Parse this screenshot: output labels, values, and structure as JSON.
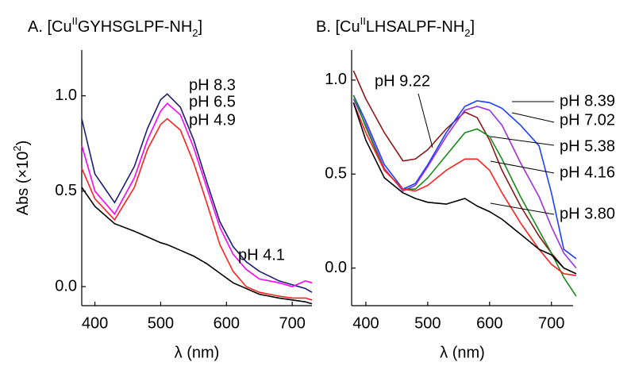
{
  "chart_data": [
    {
      "type": "line",
      "title": [
        "A. [Cu",
        "II",
        "GYHSGLPF-NH",
        "2",
        "]"
      ],
      "y_label": [
        "Abs (×10",
        "2",
        ")"
      ],
      "x_label": "λ (nm)",
      "xlim": [
        380,
        730
      ],
      "xticks": [
        400,
        500,
        600,
        700
      ],
      "ylim": [
        -0.1,
        1.24
      ],
      "yticks": [
        {
          "value": 0,
          "label": "0.0"
        },
        0.5,
        {
          "value": 1,
          "label": "1.0"
        }
      ],
      "x": [
        380,
        400,
        430,
        460,
        480,
        500,
        510,
        530,
        550,
        570,
        590,
        610,
        630,
        650,
        680,
        700,
        720,
        730
      ],
      "series": [
        {
          "name": "pH 8.3",
          "color": "#1c1c78",
          "values": [
            0.88,
            0.59,
            0.44,
            0.63,
            0.83,
            0.98,
            1.01,
            0.94,
            0.77,
            0.55,
            0.34,
            0.21,
            0.13,
            0.08,
            0.03,
            0.01,
            -0.01,
            -0.03
          ]
        },
        {
          "name": "pH 6.5",
          "color": "#ff00ff",
          "values": [
            0.74,
            0.5,
            0.38,
            0.57,
            0.77,
            0.92,
            0.96,
            0.9,
            0.73,
            0.52,
            0.31,
            0.17,
            0.09,
            0.04,
            0.02,
            0.0,
            0.03,
            0.02
          ]
        },
        {
          "name": "pH 4.9",
          "color": "#ff2020",
          "values": [
            0.62,
            0.46,
            0.35,
            0.52,
            0.72,
            0.85,
            0.88,
            0.82,
            0.65,
            0.44,
            0.22,
            0.08,
            0.0,
            -0.03,
            -0.05,
            -0.06,
            -0.06,
            -0.07
          ]
        },
        {
          "name": "pH 4.1",
          "color": "#000000",
          "values": [
            0.52,
            0.42,
            0.33,
            0.29,
            0.26,
            0.23,
            0.22,
            0.19,
            0.16,
            0.12,
            0.07,
            0.02,
            -0.01,
            -0.04,
            -0.06,
            -0.07,
            -0.08,
            -0.09
          ]
        }
      ]
    },
    {
      "type": "line",
      "title": [
        "B. [Cu",
        "II",
        "LHSALPF-NH",
        "2",
        "]"
      ],
      "x_label": "λ (nm)",
      "xlim": [
        377,
        735
      ],
      "xticks": [
        400,
        500,
        600,
        700
      ],
      "ylim": [
        -0.2,
        1.16
      ],
      "yticks": [
        {
          "value": 0,
          "label": "0.0"
        },
        0.5,
        {
          "value": 1,
          "label": "1.0"
        }
      ],
      "x": [
        380,
        400,
        430,
        460,
        480,
        500,
        530,
        560,
        580,
        600,
        620,
        650,
        680,
        700,
        720,
        740
      ],
      "series": [
        {
          "name": "pH 9.22",
          "color": "#8b1a1a",
          "values": [
            1.05,
            0.9,
            0.72,
            0.57,
            0.58,
            0.63,
            0.74,
            0.83,
            0.8,
            0.68,
            0.52,
            0.33,
            0.17,
            0.08,
            0.0,
            -0.03
          ]
        },
        {
          "name": "pH 8.39",
          "color": "#1f3fff",
          "values": [
            0.92,
            0.78,
            0.55,
            0.42,
            0.45,
            0.55,
            0.72,
            0.86,
            0.89,
            0.88,
            0.85,
            0.76,
            0.65,
            0.4,
            0.1,
            0.05
          ]
        },
        {
          "name": "pH 7.02",
          "color": "#9b30e0",
          "values": [
            0.9,
            0.76,
            0.53,
            0.41,
            0.44,
            0.54,
            0.7,
            0.84,
            0.86,
            0.84,
            0.76,
            0.56,
            0.38,
            0.22,
            0.08,
            0.0
          ]
        },
        {
          "name": "pH 5.38",
          "color": "#1a8a1a",
          "values": [
            0.92,
            0.75,
            0.52,
            0.42,
            0.42,
            0.48,
            0.6,
            0.72,
            0.74,
            0.7,
            0.58,
            0.38,
            0.2,
            0.08,
            -0.05,
            -0.15
          ]
        },
        {
          "name": "pH 4.16",
          "color": "#ff2020",
          "values": [
            0.88,
            0.72,
            0.52,
            0.42,
            0.41,
            0.44,
            0.52,
            0.58,
            0.58,
            0.52,
            0.4,
            0.24,
            0.1,
            0.02,
            -0.03,
            -0.04
          ]
        },
        {
          "name": "pH 3.80",
          "color": "#000000",
          "values": [
            0.88,
            0.68,
            0.48,
            0.4,
            0.37,
            0.35,
            0.34,
            0.37,
            0.33,
            0.3,
            0.26,
            0.18,
            0.1,
            0.07,
            0.0,
            -0.03
          ]
        }
      ]
    }
  ]
}
